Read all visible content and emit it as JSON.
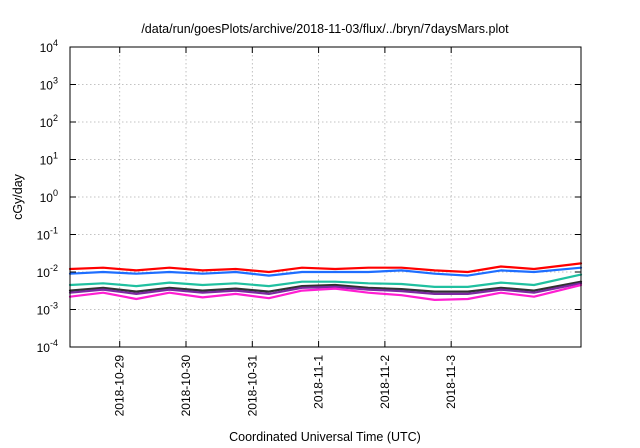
{
  "chart_data": {
    "type": "line",
    "title": "/data/run/goesPlots/archive/2018-11-03/flux/../bryn/7daysMars.plot",
    "xlabel": "Coordinated Universal Time (UTC)",
    "ylabel": "cGy/day",
    "yscale": "log",
    "ylim": [
      0.0001,
      10000
    ],
    "y_ticks": [
      {
        "base": "10",
        "exp": "-4"
      },
      {
        "base": "10",
        "exp": "-3"
      },
      {
        "base": "10",
        "exp": "-2"
      },
      {
        "base": "10",
        "exp": "-1"
      },
      {
        "base": "10",
        "exp": "0"
      },
      {
        "base": "10",
        "exp": "1"
      },
      {
        "base": "10",
        "exp": "2"
      },
      {
        "base": "10",
        "exp": "3"
      },
      {
        "base": "10",
        "exp": "4"
      }
    ],
    "x_range": [
      "2018-10-28 06:00",
      "2018-11-04 23:00"
    ],
    "x_ticks": [
      "2018-10-29",
      "2018-10-30",
      "2018-10-31",
      "2018-11-1",
      "2018-11-2",
      "2018-11-3"
    ],
    "x_tick_dates": [
      "2018-10-29",
      "2018-10-30",
      "2018-10-31",
      "2018-11-01",
      "2018-11-02",
      "2018-11-03"
    ],
    "grid": true,
    "series": [
      {
        "color": "#ff0000",
        "x": [
          "2018-10-28 06:00",
          "2018-10-28 18:00",
          "2018-10-29 06:00",
          "2018-10-29 18:00",
          "2018-10-30 06:00",
          "2018-10-30 18:00",
          "2018-10-31 06:00",
          "2018-10-31 18:00",
          "2018-11-01 06:00",
          "2018-11-01 18:00",
          "2018-11-02 06:00",
          "2018-11-02 18:00",
          "2018-11-03 06:00",
          "2018-11-03 18:00",
          "2018-11-04 06:00",
          "2018-11-04 23:00"
        ],
        "values": [
          0.012,
          0.013,
          0.011,
          0.013,
          0.011,
          0.012,
          0.01,
          0.013,
          0.012,
          0.013,
          0.013,
          0.011,
          0.01,
          0.014,
          0.012,
          0.017
        ]
      },
      {
        "color": "#1e6eff",
        "x": [
          "2018-10-28 06:00",
          "2018-10-28 18:00",
          "2018-10-29 06:00",
          "2018-10-29 18:00",
          "2018-10-30 06:00",
          "2018-10-30 18:00",
          "2018-10-31 06:00",
          "2018-10-31 18:00",
          "2018-11-01 06:00",
          "2018-11-01 18:00",
          "2018-11-02 06:00",
          "2018-11-02 18:00",
          "2018-11-03 06:00",
          "2018-11-03 18:00",
          "2018-11-04 06:00",
          "2018-11-04 23:00"
        ],
        "values": [
          0.009,
          0.01,
          0.009,
          0.01,
          0.009,
          0.01,
          0.008,
          0.01,
          0.01,
          0.01,
          0.011,
          0.009,
          0.008,
          0.011,
          0.01,
          0.013
        ]
      },
      {
        "color": "#20c0a0",
        "x": [
          "2018-10-28 06:00",
          "2018-10-28 18:00",
          "2018-10-29 06:00",
          "2018-10-29 18:00",
          "2018-10-30 06:00",
          "2018-10-30 18:00",
          "2018-10-31 06:00",
          "2018-10-31 18:00",
          "2018-11-01 06:00",
          "2018-11-01 18:00",
          "2018-11-02 06:00",
          "2018-11-02 18:00",
          "2018-11-03 06:00",
          "2018-11-03 18:00",
          "2018-11-04 06:00",
          "2018-11-04 23:00"
        ],
        "values": [
          0.0045,
          0.005,
          0.0042,
          0.0052,
          0.0045,
          0.005,
          0.0042,
          0.0055,
          0.0055,
          0.005,
          0.0048,
          0.004,
          0.004,
          0.0052,
          0.0045,
          0.0085
        ]
      },
      {
        "color": "#303030",
        "x": [
          "2018-10-28 06:00",
          "2018-10-28 18:00",
          "2018-10-29 06:00",
          "2018-10-29 18:00",
          "2018-10-30 06:00",
          "2018-10-30 18:00",
          "2018-10-31 06:00",
          "2018-10-31 18:00",
          "2018-11-01 06:00",
          "2018-11-01 18:00",
          "2018-11-02 06:00",
          "2018-11-02 18:00",
          "2018-11-03 06:00",
          "2018-11-03 18:00",
          "2018-11-04 06:00",
          "2018-11-04 23:00"
        ],
        "values": [
          0.0032,
          0.0038,
          0.003,
          0.0038,
          0.0032,
          0.0036,
          0.003,
          0.0042,
          0.0045,
          0.0038,
          0.0035,
          0.003,
          0.003,
          0.0038,
          0.0032,
          0.0055
        ]
      },
      {
        "color": "#7a2aa0",
        "x": [
          "2018-10-28 06:00",
          "2018-10-28 18:00",
          "2018-10-29 06:00",
          "2018-10-29 18:00",
          "2018-10-30 06:00",
          "2018-10-30 18:00",
          "2018-10-31 06:00",
          "2018-10-31 18:00",
          "2018-11-01 06:00",
          "2018-11-01 18:00",
          "2018-11-02 06:00",
          "2018-11-02 18:00",
          "2018-11-03 06:00",
          "2018-11-03 18:00",
          "2018-11-04 06:00",
          "2018-11-04 23:00"
        ],
        "values": [
          0.0028,
          0.0034,
          0.0026,
          0.0034,
          0.0028,
          0.0032,
          0.0026,
          0.0038,
          0.004,
          0.0034,
          0.0031,
          0.0026,
          0.0026,
          0.0034,
          0.0028,
          0.005
        ]
      },
      {
        "color": "#ff1ed2",
        "x": [
          "2018-10-28 06:00",
          "2018-10-28 18:00",
          "2018-10-29 06:00",
          "2018-10-29 18:00",
          "2018-10-30 06:00",
          "2018-10-30 18:00",
          "2018-10-31 06:00",
          "2018-10-31 18:00",
          "2018-11-01 06:00",
          "2018-11-01 18:00",
          "2018-11-02 06:00",
          "2018-11-02 18:00",
          "2018-11-03 06:00",
          "2018-11-03 18:00",
          "2018-11-04 06:00",
          "2018-11-04 23:00"
        ],
        "values": [
          0.0022,
          0.0028,
          0.0019,
          0.0028,
          0.0021,
          0.0026,
          0.002,
          0.0032,
          0.0036,
          0.0028,
          0.0024,
          0.0018,
          0.0019,
          0.0028,
          0.0022,
          0.0045
        ]
      }
    ]
  }
}
